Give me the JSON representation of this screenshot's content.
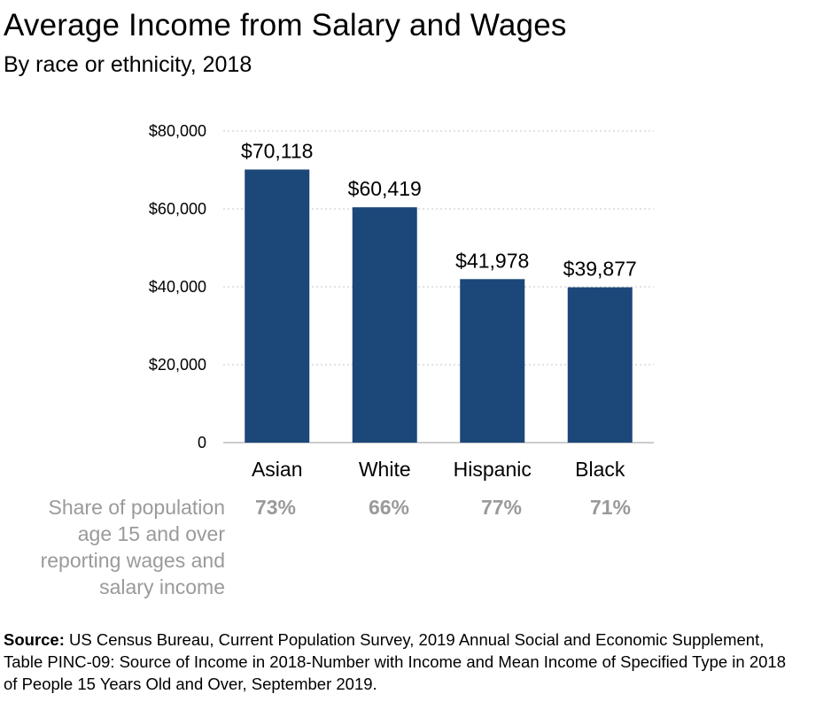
{
  "chart_data": {
    "type": "bar",
    "title": "Average Income from Salary and Wages",
    "subtitle": "By race or ethnicity, 2018",
    "categories": [
      "Asian",
      "White",
      "Hispanic",
      "Black"
    ],
    "values": [
      70118,
      60419,
      41978,
      39877
    ],
    "value_labels": [
      "$70,118",
      "$60,419",
      "$41,978",
      "$39,877"
    ],
    "ylim": [
      0,
      80000
    ],
    "yticks": [
      0,
      20000,
      40000,
      60000,
      80000
    ],
    "ytick_labels": [
      "0",
      "$20,000",
      "$40,000",
      "$60,000",
      "$80,000"
    ],
    "grid": true,
    "bar_color": "#1b4779",
    "xlabel": "",
    "ylabel": ""
  },
  "share": {
    "caption_lines": [
      "Share of population",
      "age 15 and over",
      "reporting wages and",
      "salary income"
    ],
    "values": [
      "73%",
      "66%",
      "77%",
      "71%"
    ],
    "color": "#9a9a9a"
  },
  "source": {
    "label": "Source:",
    "text": " US Census Bureau, Current Population Survey, 2019 Annual Social and Economic Supplement, Table PINC-09: Source of Income in 2018-Number with Income and Mean Income of Specified Type in 2018 of People 15 Years Old and Over, September 2019."
  }
}
